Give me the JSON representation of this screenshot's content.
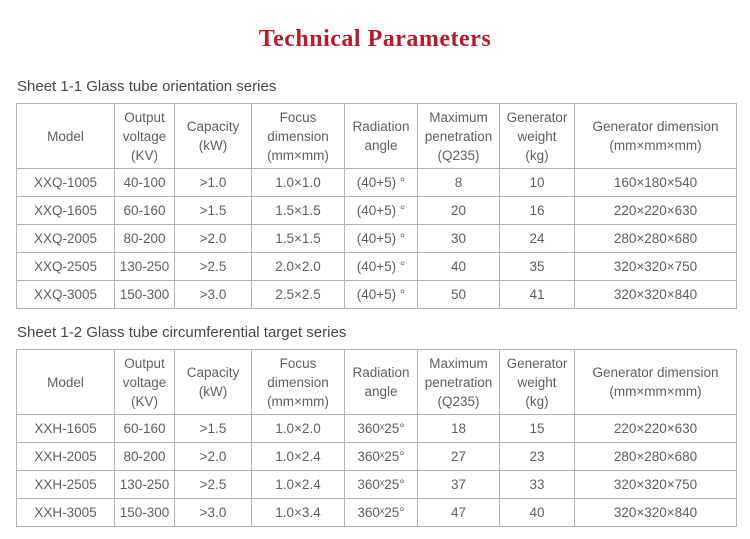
{
  "page": {
    "title": "Technical Parameters",
    "accent_color": "#b81c2c",
    "text_color": "#5f5f5f",
    "border_color": "#b2b2b2"
  },
  "tables": [
    {
      "caption": "Sheet 1-1 Glass tube orientation series",
      "headers": [
        [
          "Model"
        ],
        [
          "Output",
          "voltage",
          "(KV)"
        ],
        [
          "Capacity",
          "(kW)"
        ],
        [
          "Focus",
          "dimension",
          "(mm×mm)"
        ],
        [
          "Radiation",
          "angle"
        ],
        [
          "Maximum",
          "penetration",
          "(Q235)"
        ],
        [
          "Generator",
          "weight",
          "(kg)"
        ],
        [
          "Generator dimension",
          "(mm×mm×mm)"
        ]
      ],
      "rows": [
        [
          "XXQ-1005",
          "40-100",
          ">1.0",
          "1.0×1.0",
          "(40+5) °",
          "8",
          "10",
          "160×180×540"
        ],
        [
          "XXQ-1605",
          "60-160",
          ">1.5",
          "1.5×1.5",
          "(40+5) °",
          "20",
          "16",
          "220×220×630"
        ],
        [
          "XXQ-2005",
          "80-200",
          ">2.0",
          "1.5×1.5",
          "(40+5) °",
          "30",
          "24",
          "280×280×680"
        ],
        [
          "XXQ-2505",
          "130-250",
          ">2.5",
          "2.0×2.0",
          "(40+5) °",
          "40",
          "35",
          "320×320×750"
        ],
        [
          "XXQ-3005",
          "150-300",
          ">3.0",
          "2.5×2.5",
          "(40+5) °",
          "50",
          "41",
          "320×320×840"
        ]
      ]
    },
    {
      "caption": "Sheet 1-2 Glass tube circumferential target series",
      "headers": [
        [
          "Model"
        ],
        [
          "Output",
          "voltage",
          "(KV)"
        ],
        [
          "Capacity",
          "(kW)"
        ],
        [
          "Focus",
          "dimension",
          "(mm×mm)"
        ],
        [
          "Radiation",
          "angle"
        ],
        [
          "Maximum",
          "penetration",
          "(Q235)"
        ],
        [
          "Generator",
          "weight",
          "(kg)"
        ],
        [
          "Generator dimension",
          "(mm×mm×mm)"
        ]
      ],
      "rows": [
        [
          "XXH-1605",
          "60-160",
          ">1.5",
          "1.0×2.0",
          "360ˣ25°",
          "18",
          "15",
          "220×220×630"
        ],
        [
          "XXH-2005",
          "80-200",
          ">2.0",
          "1.0×2.4",
          "360ˣ25°",
          "27",
          "23",
          "280×280×680"
        ],
        [
          "XXH-2505",
          "130-250",
          ">2.5",
          "1.0×2.4",
          "360ˣ25°",
          "37",
          "33",
          "320×320×750"
        ],
        [
          "XXH-3005",
          "150-300",
          ">3.0",
          "1.0×3.4",
          "360ˣ25°",
          "47",
          "40",
          "320×320×840"
        ]
      ]
    }
  ]
}
